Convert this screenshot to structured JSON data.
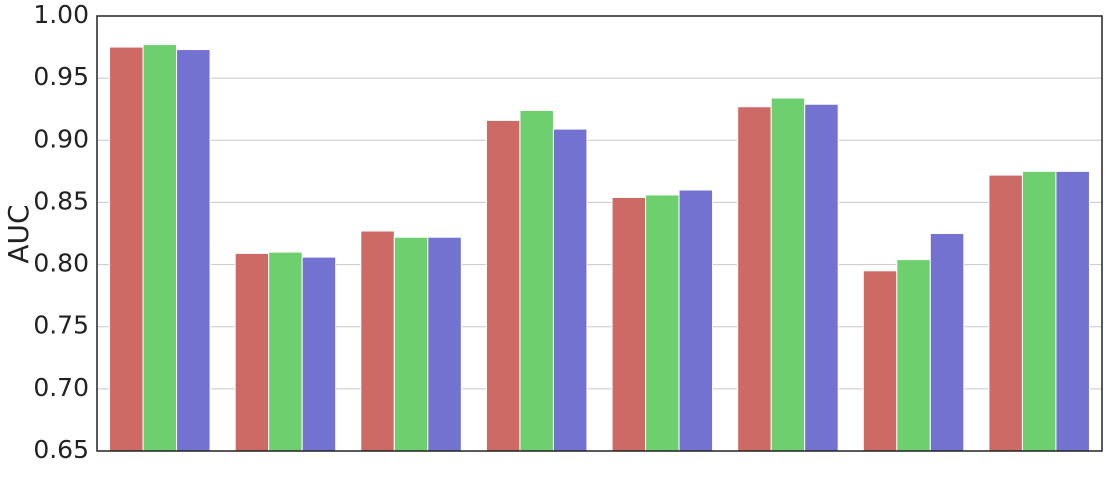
{
  "chart_data": {
    "type": "bar",
    "y_label": "AUC",
    "categories": [
      null,
      null,
      null,
      null,
      null,
      null,
      null,
      null
    ],
    "series": [
      {
        "color": "#cd6a65",
        "values": [
          0.975,
          0.809,
          0.827,
          0.916,
          0.854,
          0.927,
          0.795,
          0.872
        ]
      },
      {
        "color": "#6ecf6f",
        "values": [
          0.977,
          0.81,
          0.822,
          0.924,
          0.856,
          0.934,
          0.804,
          0.875
        ]
      },
      {
        "color": "#7372d1",
        "values": [
          0.973,
          0.806,
          0.822,
          0.909,
          0.86,
          0.929,
          0.825,
          0.875
        ]
      }
    ],
    "ylim": [
      0.65,
      1.0
    ],
    "yticks": [
      0.65,
      {
        "value": 0.7,
        "label": "0.70"
      },
      0.75,
      {
        "value": 0.8,
        "label": "0.80"
      },
      0.85,
      {
        "value": 0.9,
        "label": "0.90"
      },
      0.95,
      {
        "value": 1.0,
        "label": "1.00"
      }
    ],
    "grid": true
  }
}
